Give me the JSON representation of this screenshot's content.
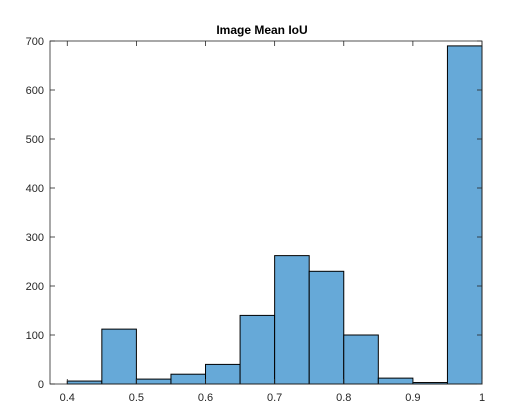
{
  "chart_data": {
    "type": "histogram",
    "title": "Image Mean IoU",
    "xlabel": "",
    "ylabel": "",
    "xlim": [
      0.375,
      1.0
    ],
    "ylim": [
      0,
      700
    ],
    "xticks": [
      0.4,
      0.5,
      0.6,
      0.7,
      0.8,
      0.9,
      1.0
    ],
    "xtick_labels": [
      "0.4",
      "0.5",
      "0.6",
      "0.7",
      "0.8",
      "0.9",
      "1"
    ],
    "yticks": [
      0,
      100,
      200,
      300,
      400,
      500,
      600,
      700
    ],
    "ytick_labels": [
      "0",
      "100",
      "200",
      "300",
      "400",
      "500",
      "600",
      "700"
    ],
    "grid": false,
    "bin_edges": [
      0.4,
      0.45,
      0.5,
      0.55,
      0.6,
      0.65,
      0.7,
      0.75,
      0.8,
      0.85,
      0.9,
      0.95,
      1.0
    ],
    "values": [
      6,
      112,
      10,
      20,
      40,
      140,
      262,
      230,
      100,
      12,
      3,
      690
    ],
    "bar_color": "#66a9d8",
    "edge_color": "#000000"
  }
}
